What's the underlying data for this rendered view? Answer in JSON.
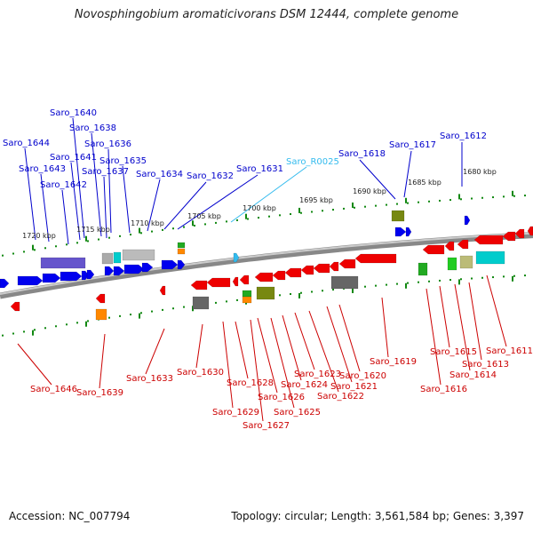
{
  "title": "Novosphingobium aromaticivorans DSM 12444, complete genome",
  "footer": {
    "accession": "Accession: NC_007794",
    "topology": "Topology: circular; Length: 3,561,584 bp; Genes: 3,397"
  },
  "colors": {
    "forward_label": "#0000cc",
    "reverse_label": "#cc0000",
    "rna_label": "#33bbee",
    "forward_gene": "#0000ee",
    "reverse_gene": "#ee0000",
    "rna_gene": "#33bbee",
    "backbone": "#888888",
    "tick": "#118811"
  },
  "scale_labels": [
    "1720 kbp",
    "1715 kbp",
    "1710 kbp",
    "1705 kbp",
    "1700 kbp",
    "1695 kbp",
    "1690 kbp",
    "1685 kbp",
    "1680 kbp"
  ],
  "forward_labels": [
    "Saro_1640",
    "Saro_1638",
    "Saro_1636",
    "Saro_1644",
    "Saro_1641",
    "Saro_1635",
    "Saro_1643",
    "Saro_1637",
    "Saro_1634",
    "Saro_1642",
    "Saro_1632",
    "Saro_1631",
    "Saro_1618",
    "Saro_1617",
    "Saro_1612"
  ],
  "rna_labels": [
    "Saro_R0025"
  ],
  "reverse_labels": [
    "Saro_1646",
    "Saro_1639",
    "Saro_1633",
    "Saro_1630",
    "Saro_1628",
    "Saro_1629",
    "Saro_1627",
    "Saro_1626",
    "Saro_1625",
    "Saro_1624",
    "Saro_1623",
    "Saro_1622",
    "Saro_1621",
    "Saro_1620",
    "Saro_1619",
    "Saro_1616",
    "Saro_1615",
    "Saro_1614",
    "Saro_1613",
    "Saro_1611"
  ]
}
